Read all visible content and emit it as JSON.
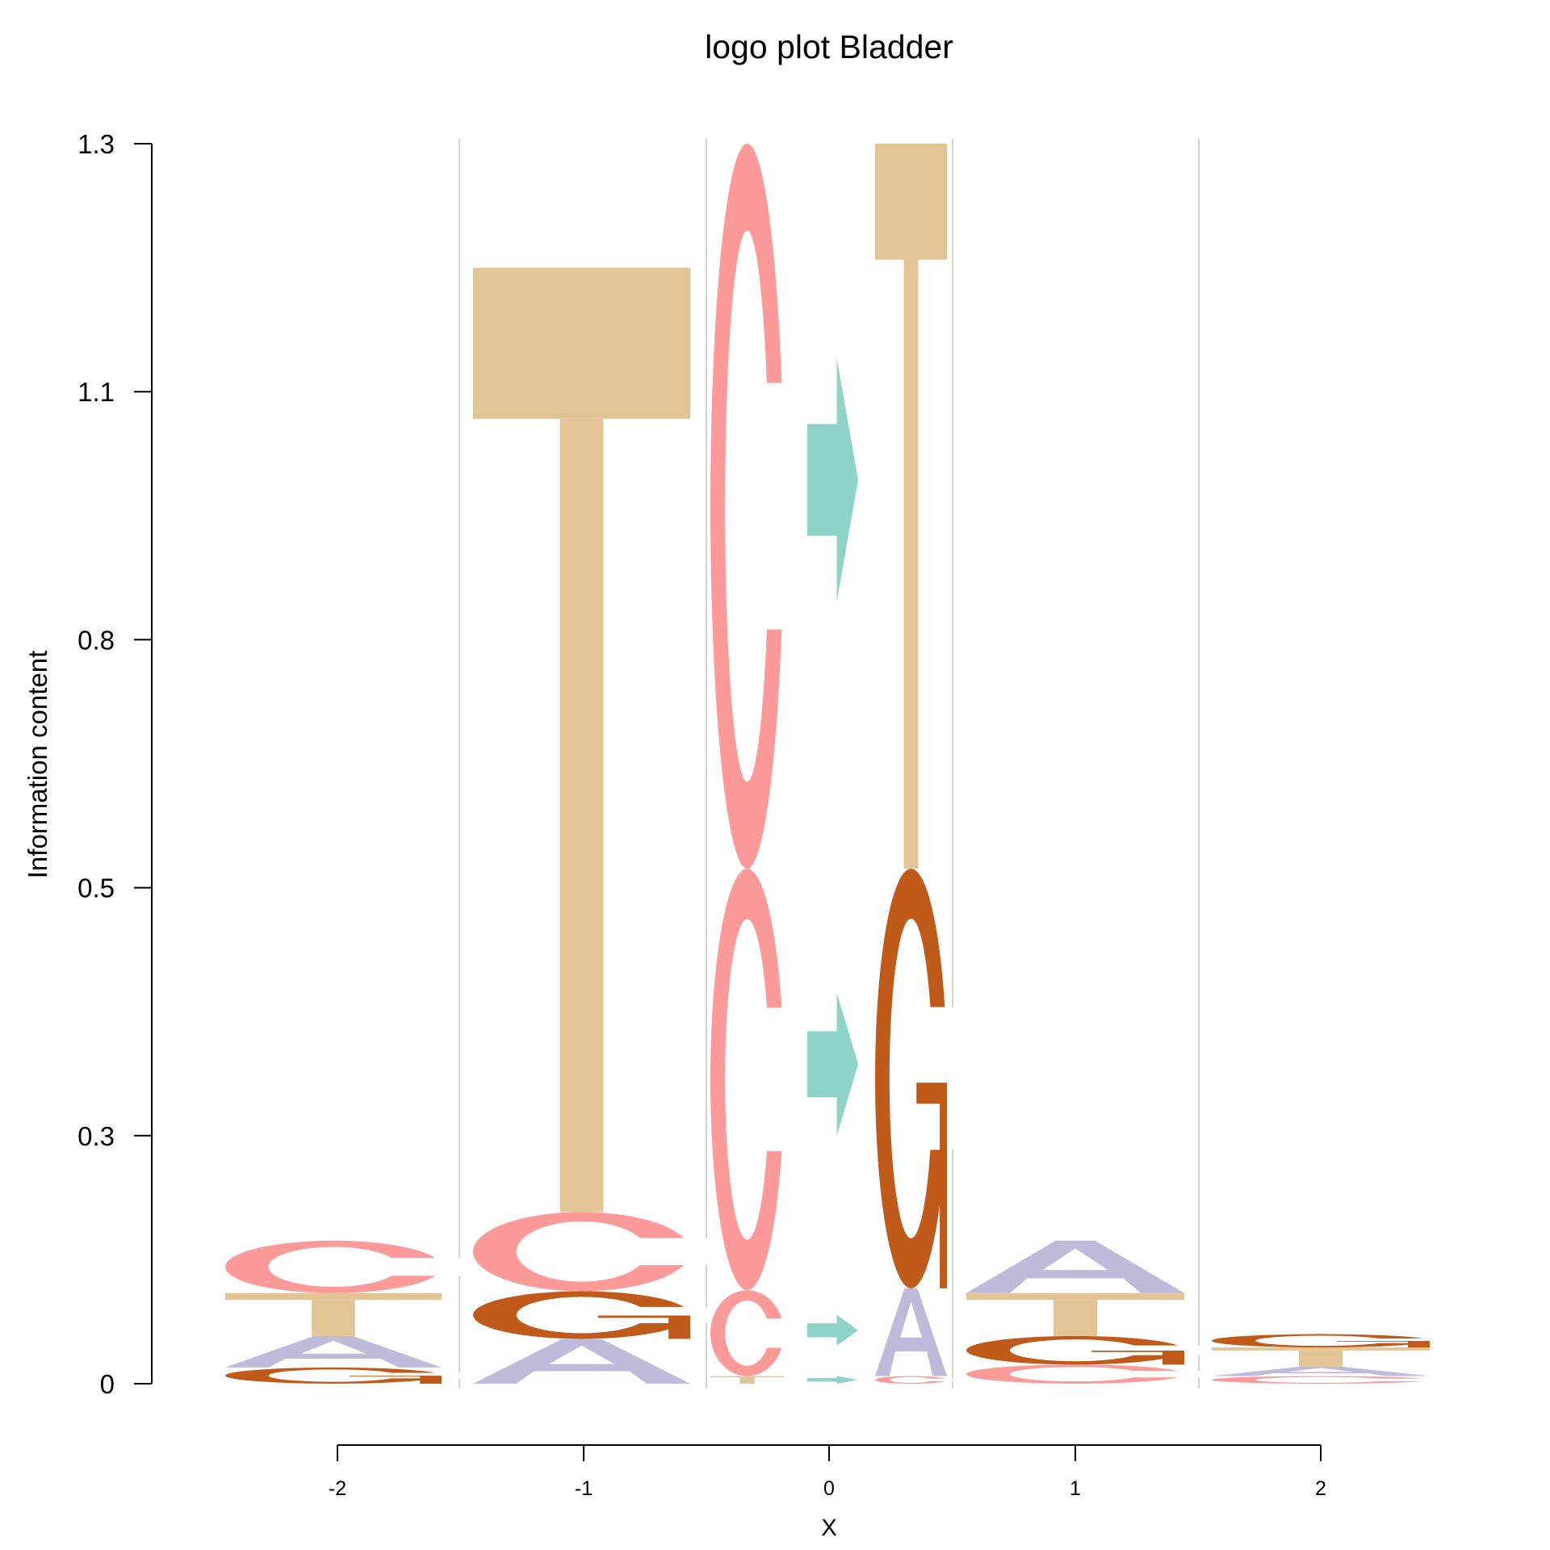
{
  "chart_data": {
    "type": "logo",
    "title": "logo plot Bladder",
    "xlabel": "X",
    "ylabel": "Information content",
    "ylim": [
      0,
      1.3
    ],
    "yticks": [
      "0",
      "0.3",
      "0.5",
      "0.8",
      "1.1",
      "1.3"
    ],
    "ytick_values": [
      0,
      0.26,
      0.52,
      0.78,
      1.04,
      1.3
    ],
    "xticks": [
      "-2",
      "-1",
      "0",
      "1",
      "2"
    ],
    "grid": "vertical separators between positions",
    "colors": {
      "A": "#BEBADA",
      "C": "#FB9A99",
      "G": "#C05A1A",
      "T": "#E3C494",
      "arrow": "#8DD3C7"
    },
    "columns": [
      {
        "position": "-2",
        "stacks": [
          {
            "symbol": "G",
            "from": 0.0,
            "to": 0.017
          },
          {
            "symbol": "A",
            "from": 0.017,
            "to": 0.05
          },
          {
            "symbol": "T",
            "from": 0.05,
            "to": 0.095
          },
          {
            "symbol": "C",
            "from": 0.095,
            "to": 0.15
          }
        ]
      },
      {
        "position": "-1",
        "stacks": [
          {
            "symbol": "A",
            "from": 0.0,
            "to": 0.047
          },
          {
            "symbol": "G",
            "from": 0.047,
            "to": 0.097
          },
          {
            "symbol": "C",
            "from": 0.097,
            "to": 0.18
          },
          {
            "symbol": "T",
            "from": 0.18,
            "to": 1.17
          }
        ]
      },
      {
        "position": "0a",
        "stacks": [
          {
            "symbol": "T",
            "from": 0.0,
            "to": 0.008
          },
          {
            "symbol": "C",
            "from": 0.008,
            "to": 0.098
          },
          {
            "symbol": "C",
            "from": 0.098,
            "to": 0.54
          },
          {
            "symbol": "C",
            "from": 0.54,
            "to": 1.3
          }
        ]
      },
      {
        "position": "0",
        "stacks": [
          {
            "symbol": "arrow",
            "from": 0.0,
            "to": 0.008
          },
          {
            "symbol": "arrow",
            "from": 0.04,
            "to": 0.072
          },
          {
            "symbol": "arrow",
            "from": 0.26,
            "to": 0.41
          },
          {
            "symbol": "arrow",
            "from": 0.82,
            "to": 1.075
          }
        ]
      },
      {
        "position": "0b",
        "stacks": [
          {
            "symbol": "C",
            "from": 0.0,
            "to": 0.008
          },
          {
            "symbol": "A",
            "from": 0.008,
            "to": 0.1
          },
          {
            "symbol": "G",
            "from": 0.1,
            "to": 0.54
          },
          {
            "symbol": "T",
            "from": 0.54,
            "to": 1.3
          }
        ]
      },
      {
        "position": "1",
        "stacks": [
          {
            "symbol": "C",
            "from": 0.0,
            "to": 0.02
          },
          {
            "symbol": "G",
            "from": 0.02,
            "to": 0.05
          },
          {
            "symbol": "T",
            "from": 0.05,
            "to": 0.095
          },
          {
            "symbol": "A",
            "from": 0.095,
            "to": 0.15
          }
        ]
      },
      {
        "position": "2",
        "stacks": [
          {
            "symbol": "C",
            "from": 0.0,
            "to": 0.008
          },
          {
            "symbol": "A",
            "from": 0.008,
            "to": 0.018
          },
          {
            "symbol": "T",
            "from": 0.018,
            "to": 0.038
          },
          {
            "symbol": "G",
            "from": 0.038,
            "to": 0.052
          }
        ]
      }
    ]
  }
}
